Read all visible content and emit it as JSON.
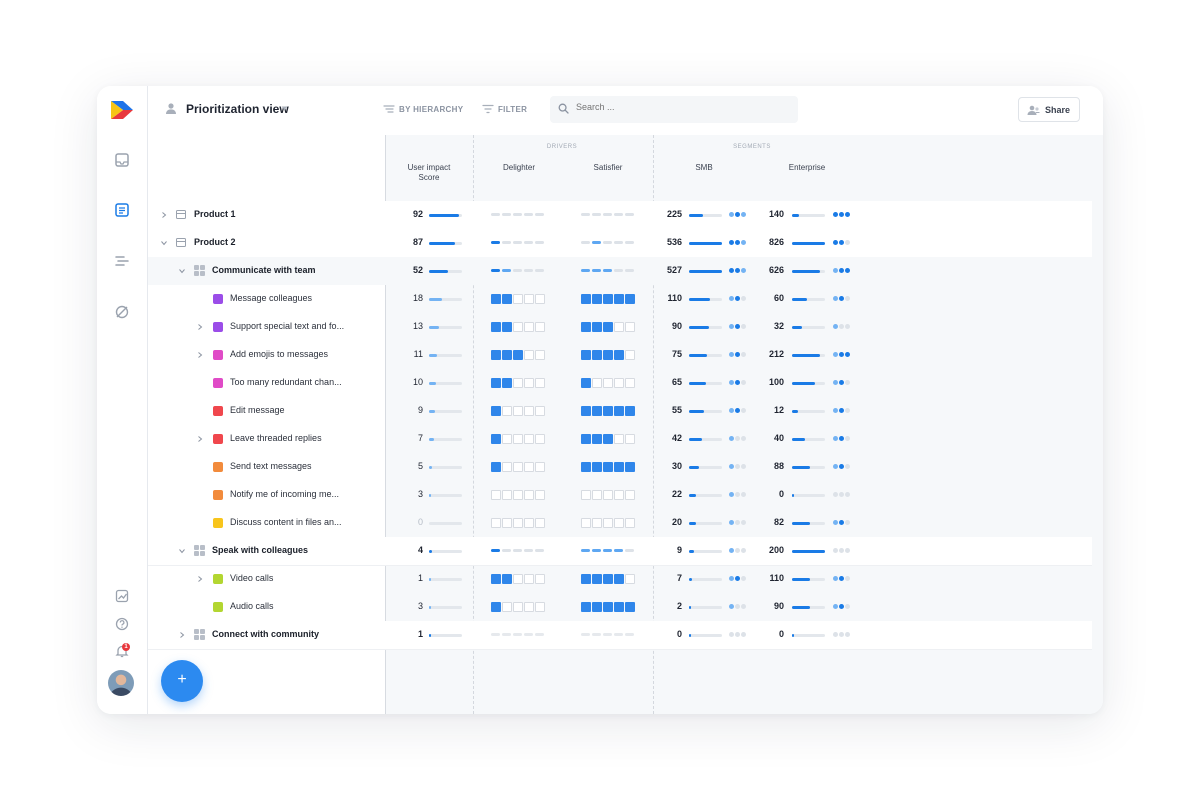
{
  "topbar": {
    "view_title": "Prioritization view",
    "by_hierarchy": "BY HIERARCHY",
    "filter": "FILTER",
    "search_placeholder": "Search ...",
    "share": "Share"
  },
  "rail": {
    "notification_count": "1"
  },
  "columns": {
    "user_impact_1": "User impact",
    "user_impact_2": "Score",
    "drivers_group": "DRIVERS",
    "delighter": "Delighter",
    "satisfier": "Satisfier",
    "segments_group": "SEGMENTS",
    "smb": "SMB",
    "enterprise": "Enterprise"
  },
  "colors": {
    "accent": "#1a7be6",
    "accent_light": "#74b3f3",
    "purple": "#9b4de8",
    "magenta": "#e04bc7",
    "red": "#f0474d",
    "orange": "#f28b3c",
    "yellow": "#f8c51c",
    "lime": "#b3d631"
  },
  "rows": [
    {
      "label": "Product 1",
      "kind": "product",
      "level": 0,
      "chevron": "right",
      "score": "92",
      "score_frac": 0.9,
      "delighter": {
        "type": "dashes",
        "pattern": "ggggg"
      },
      "satisfier": {
        "type": "dashes",
        "pattern": "ggggg"
      },
      "smb": "225",
      "smb_frac": 0.42,
      "smb_dots": "mom",
      "ent": "140",
      "ent_frac": 0.2,
      "ent_dots": "ooo",
      "highlight": true
    },
    {
      "label": "Product 2",
      "kind": "product",
      "level": 0,
      "chevron": "down",
      "score": "87",
      "score_frac": 0.8,
      "delighter": {
        "type": "dashes",
        "pattern": "bgggg"
      },
      "satisfier": {
        "type": "dashes",
        "pattern": "gmggg"
      },
      "smb": "536",
      "smb_frac": 1.0,
      "smb_dots": "oom",
      "ent": "826",
      "ent_frac": 1.0,
      "ent_dots": "oog",
      "highlight": true
    },
    {
      "label": "Communicate with team",
      "kind": "component",
      "level": 1,
      "chevron": "down",
      "score": "52",
      "score_frac": 0.58,
      "delighter": {
        "type": "dashes",
        "pattern": "bmggg"
      },
      "satisfier": {
        "type": "dashes",
        "pattern": "mmmgg"
      },
      "smb": "527",
      "smb_frac": 1.0,
      "smb_dots": "oom",
      "ent": "626",
      "ent_frac": 0.85,
      "ent_dots": "moo",
      "highlight": false
    },
    {
      "label": "Message colleagues",
      "kind": "feature",
      "color": "purple",
      "level": 2,
      "chevron": "",
      "score": "18",
      "score_frac": 0.4,
      "score_light": true,
      "delighter": {
        "type": "boxes",
        "filled": 2,
        "total": 5
      },
      "satisfier": {
        "type": "boxes",
        "filled": 5,
        "total": 5
      },
      "smb": "110",
      "smb_frac": 0.65,
      "smb_dots": "mog",
      "ent": "60",
      "ent_frac": 0.45,
      "ent_dots": "mog",
      "highlight": false
    },
    {
      "label": "Support special text and fo...",
      "kind": "feature",
      "color": "purple",
      "level": 2,
      "chevron": "right",
      "score": "13",
      "score_frac": 0.3,
      "score_light": true,
      "delighter": {
        "type": "boxes",
        "filled": 2,
        "total": 5
      },
      "satisfier": {
        "type": "boxes",
        "filled": 3,
        "total": 5
      },
      "smb": "90",
      "smb_frac": 0.6,
      "smb_dots": "mog",
      "ent": "32",
      "ent_frac": 0.3,
      "ent_dots": "mgg",
      "highlight": false
    },
    {
      "label": "Add emojis to messages",
      "kind": "feature",
      "color": "magenta",
      "level": 2,
      "chevron": "right",
      "score": "11",
      "score_frac": 0.25,
      "score_light": true,
      "delighter": {
        "type": "boxes",
        "filled": 3,
        "total": 5
      },
      "satisfier": {
        "type": "boxes",
        "filled": 4,
        "total": 5
      },
      "smb": "75",
      "smb_frac": 0.55,
      "smb_dots": "mog",
      "ent": "212",
      "ent_frac": 0.85,
      "ent_dots": "moo",
      "highlight": false
    },
    {
      "label": "Too many redundant chan...",
      "kind": "feature",
      "color": "magenta",
      "level": 2,
      "chevron": "",
      "score": "10",
      "score_frac": 0.22,
      "score_light": true,
      "delighter": {
        "type": "boxes",
        "filled": 2,
        "total": 5
      },
      "satisfier": {
        "type": "boxes",
        "filled": 1,
        "total": 5
      },
      "smb": "65",
      "smb_frac": 0.5,
      "smb_dots": "mog",
      "ent": "100",
      "ent_frac": 0.7,
      "ent_dots": "mog",
      "highlight": false
    },
    {
      "label": "Edit message",
      "kind": "feature",
      "color": "red",
      "level": 2,
      "chevron": "",
      "score": "9",
      "score_frac": 0.18,
      "score_light": true,
      "delighter": {
        "type": "boxes",
        "filled": 1,
        "total": 5
      },
      "satisfier": {
        "type": "boxes",
        "filled": 5,
        "total": 5
      },
      "smb": "55",
      "smb_frac": 0.45,
      "smb_dots": "mog",
      "ent": "12",
      "ent_frac": 0.18,
      "ent_dots": "mog",
      "highlight": false
    },
    {
      "label": "Leave threaded replies",
      "kind": "feature",
      "color": "red",
      "level": 2,
      "chevron": "right",
      "score": "7",
      "score_frac": 0.14,
      "score_light": true,
      "delighter": {
        "type": "boxes",
        "filled": 1,
        "total": 5
      },
      "satisfier": {
        "type": "boxes",
        "filled": 3,
        "total": 5
      },
      "smb": "42",
      "smb_frac": 0.38,
      "smb_dots": "mgg",
      "ent": "40",
      "ent_frac": 0.4,
      "ent_dots": "mog",
      "highlight": false
    },
    {
      "label": "Send text messages",
      "kind": "feature",
      "color": "orange",
      "level": 2,
      "chevron": "",
      "score": "5",
      "score_frac": 0.1,
      "score_light": true,
      "delighter": {
        "type": "boxes",
        "filled": 1,
        "total": 5
      },
      "satisfier": {
        "type": "boxes",
        "filled": 5,
        "total": 5
      },
      "smb": "30",
      "smb_frac": 0.3,
      "smb_dots": "mgg",
      "ent": "88",
      "ent_frac": 0.55,
      "ent_dots": "mog",
      "highlight": false
    },
    {
      "label": "Notify me of incoming me...",
      "kind": "feature",
      "color": "orange",
      "level": 2,
      "chevron": "",
      "score": "3",
      "score_frac": 0.06,
      "score_light": true,
      "delighter": {
        "type": "boxes",
        "filled": 0,
        "total": 5
      },
      "satisfier": {
        "type": "boxes",
        "filled": 0,
        "total": 5
      },
      "smb": "22",
      "smb_frac": 0.22,
      "smb_dots": "mgg",
      "ent": "0",
      "ent_frac": 0.04,
      "ent_dots": "ggg",
      "highlight": false
    },
    {
      "label": "Discuss content in files an...",
      "kind": "feature",
      "color": "yellow",
      "level": 2,
      "chevron": "",
      "score": "0",
      "score_frac": 0.0,
      "score_zero": true,
      "delighter": {
        "type": "boxes",
        "filled": 0,
        "total": 5
      },
      "satisfier": {
        "type": "boxes",
        "filled": 0,
        "total": 5
      },
      "smb": "20",
      "smb_frac": 0.2,
      "smb_dots": "mgg",
      "ent": "82",
      "ent_frac": 0.55,
      "ent_dots": "mog",
      "highlight": false
    },
    {
      "label": "Speak with colleagues",
      "kind": "component",
      "level": 1,
      "chevron": "down",
      "score": "4",
      "score_frac": 0.1,
      "delighter": {
        "type": "dashes",
        "pattern": "bgggg"
      },
      "satisfier": {
        "type": "dashes",
        "pattern": "mmmmg"
      },
      "smb": "9",
      "smb_frac": 0.15,
      "smb_dots": "mgg",
      "ent": "200",
      "ent_frac": 1.0,
      "ent_dots": "ggg",
      "highlight": true
    },
    {
      "label": "Video calls",
      "kind": "feature",
      "color": "lime",
      "level": 2,
      "chevron": "right",
      "score": "1",
      "score_frac": 0.04,
      "score_light": true,
      "delighter": {
        "type": "boxes",
        "filled": 2,
        "total": 5
      },
      "satisfier": {
        "type": "boxes",
        "filled": 4,
        "total": 5
      },
      "smb": "7",
      "smb_frac": 0.1,
      "smb_dots": "mog",
      "ent": "110",
      "ent_frac": 0.55,
      "ent_dots": "mog",
      "highlight": false
    },
    {
      "label": "Audio calls",
      "kind": "feature",
      "color": "lime",
      "level": 2,
      "chevron": "",
      "score": "3",
      "score_frac": 0.06,
      "score_light": true,
      "delighter": {
        "type": "boxes",
        "filled": 1,
        "total": 5
      },
      "satisfier": {
        "type": "boxes",
        "filled": 5,
        "total": 5
      },
      "smb": "2",
      "smb_frac": 0.06,
      "smb_dots": "mgg",
      "ent": "90",
      "ent_frac": 0.55,
      "ent_dots": "mog",
      "highlight": false
    },
    {
      "label": "Connect with community",
      "kind": "component",
      "level": 1,
      "chevron": "right",
      "score": "1",
      "score_frac": 0.06,
      "delighter": {
        "type": "dashes",
        "pattern": "fffff"
      },
      "satisfier": {
        "type": "dashes",
        "pattern": "fffff"
      },
      "smb": "0",
      "smb_frac": 0.04,
      "smb_dots": "ggg",
      "ent": "0",
      "ent_frac": 0.04,
      "ent_dots": "ggg",
      "highlight": true
    }
  ]
}
